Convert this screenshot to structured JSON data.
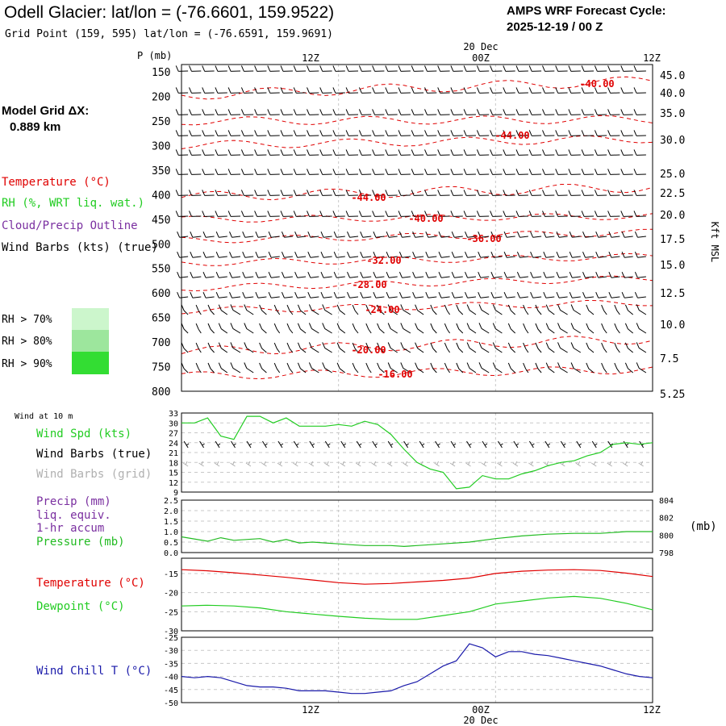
{
  "header": {
    "title": "Odell Glacier:  lat/lon = (-76.6601, 159.9522)",
    "subtitle": "Grid Point (159, 595) lat/lon = (-76.6591, 159.9691)",
    "cycle_label": "AMPS WRF Forecast Cycle:",
    "cycle_value": "2025-12-19 / 00  Z",
    "grid_label": "Model Grid ΔX:",
    "grid_value": "0.889 km"
  },
  "time_axis": {
    "ticks": [
      "12Z",
      "00Z",
      "12Z"
    ],
    "date": "20 Dec"
  },
  "colors": {
    "temperature": "#e00000",
    "rh": "#22cc22",
    "cloud": "#7a2fa0",
    "wind": "#000000",
    "wind_grid": "#b0b0b0",
    "pressure": "#22bb22",
    "windchill": "#1a1aaa",
    "rh70": "#ccf6cc",
    "rh80": "#9de69d",
    "rh90": "#33dd33"
  },
  "profile": {
    "p_label": "P (mb)",
    "right_label": "Kft MSL",
    "legend": [
      "Temperature (°C)",
      "RH (%, WRT liq. wat.)",
      "Cloud/Precip Outline",
      "Wind Barbs (kts) (true)"
    ],
    "rh_legend": [
      "RH > 70%",
      "RH > 80%",
      "RH > 90%"
    ],
    "pressure_levels": [
      "150",
      "200",
      "250",
      "300",
      "350",
      "400",
      "450",
      "500",
      "550",
      "600",
      "650",
      "700",
      "750",
      "800"
    ],
    "kft_levels": [
      "45.0",
      "40.0",
      "35.0",
      "30.0",
      "25.0",
      "22.5",
      "20.0",
      "17.5",
      "15.0",
      "12.5",
      "10.0",
      "7.5",
      "5.25"
    ],
    "isotherm_labels": [
      "-40.00",
      "-44.00",
      "-44.00",
      "-40.00",
      "-36.00",
      "-32.00",
      "-28.00",
      "-24.00",
      "-20.00",
      "-16.00"
    ]
  },
  "panel_wind": {
    "title": "Wind at 10 m",
    "legend": [
      "Wind Spd (kts)",
      "Wind Barbs (true)",
      "Wind Barbs (grid)"
    ],
    "y_ticks": [
      "33",
      "30",
      "27",
      "24",
      "21",
      "18",
      "15",
      "12",
      "9"
    ]
  },
  "panel_precip": {
    "legend": [
      "Precip (mm)",
      "liq. equiv.",
      "1-hr accum",
      "Pressure (mb)"
    ],
    "y_ticks_left": [
      "2.5",
      "2.0",
      "1.5",
      "1.0",
      "0.5",
      "0.0"
    ],
    "y_ticks_right": [
      "804",
      "802",
      "800",
      "798"
    ],
    "right_unit": "(mb)"
  },
  "panel_temp": {
    "legend": [
      "Temperature (°C)",
      "Dewpoint (°C)"
    ],
    "y_ticks": [
      "-15",
      "-20",
      "-25",
      "-30"
    ]
  },
  "panel_chill": {
    "legend": [
      "Wind Chill T (°C)"
    ],
    "y_ticks": [
      "-25",
      "-30",
      "-35",
      "-40",
      "-45",
      "-50"
    ]
  },
  "chart_data": [
    {
      "type": "line",
      "title": "Wind at 10 m",
      "ylabel": "Wind Spd (kts)",
      "ylim": [
        9,
        33
      ],
      "x_hours": [
        0,
        1,
        2,
        3,
        4,
        5,
        6,
        7,
        8,
        9,
        10,
        11,
        12,
        13,
        14,
        15,
        16,
        17,
        18,
        19,
        20,
        21,
        22,
        23,
        24,
        25,
        26,
        27,
        28,
        29,
        30,
        31,
        32,
        33,
        34,
        35,
        36
      ],
      "series": [
        {
          "name": "Wind Spd (kts)",
          "values": [
            30,
            30,
            31.5,
            26,
            25,
            32,
            32,
            30,
            31.5,
            29,
            29,
            29,
            29.5,
            29,
            30.5,
            29.5,
            26.5,
            22,
            18,
            16,
            15,
            10,
            10.5,
            14,
            13,
            13,
            14.5,
            15.5,
            17,
            18,
            18.5,
            20,
            21,
            23.5,
            24,
            23.5,
            24
          ]
        }
      ]
    },
    {
      "type": "line",
      "title": "Pressure",
      "ylabel": "Pressure (mb)",
      "ylim": [
        798,
        804
      ],
      "x_hours": [
        0,
        2,
        3,
        4,
        6,
        7,
        8,
        9,
        10,
        11,
        12,
        13,
        14,
        16,
        17,
        18,
        20,
        22,
        24,
        26,
        28,
        30,
        32,
        34,
        36
      ],
      "series": [
        {
          "name": "Pressure (mb)",
          "values": [
            799.8,
            799.3,
            799.7,
            799.4,
            799.6,
            799.2,
            799.5,
            799.1,
            799.2,
            799.1,
            799.0,
            798.9,
            798.8,
            798.8,
            798.7,
            798.8,
            799.0,
            799.2,
            799.6,
            799.9,
            800.1,
            800.2,
            800.2,
            800.4,
            800.4
          ]
        }
      ],
      "precip_values": [
        0,
        0,
        0,
        0,
        0,
        0,
        0,
        0,
        0,
        0,
        0,
        0,
        0,
        0,
        0,
        0,
        0,
        0,
        0,
        0,
        0,
        0,
        0,
        0,
        0
      ]
    },
    {
      "type": "line",
      "title": "Temperature / Dewpoint",
      "ylabel": "°C",
      "ylim": [
        -30,
        -11
      ],
      "x_hours": [
        0,
        2,
        4,
        6,
        8,
        10,
        12,
        14,
        16,
        18,
        20,
        22,
        24,
        26,
        28,
        30,
        32,
        34,
        36
      ],
      "series": [
        {
          "name": "Temperature (°C)",
          "values": [
            -14,
            -14.3,
            -14.8,
            -15.4,
            -16,
            -16.7,
            -17.4,
            -17.8,
            -17.6,
            -17.2,
            -16.8,
            -16.2,
            -15,
            -14.4,
            -14.1,
            -14,
            -14.2,
            -14.9,
            -15.8
          ]
        },
        {
          "name": "Dewpoint (°C)",
          "values": [
            -23.5,
            -23.3,
            -23.5,
            -24,
            -25,
            -25.6,
            -26.2,
            -26.7,
            -27,
            -27,
            -26,
            -25,
            -23,
            -22.2,
            -21.4,
            -21,
            -21.5,
            -22.8,
            -24.5
          ]
        }
      ]
    },
    {
      "type": "line",
      "title": "Wind Chill",
      "ylabel": "Wind Chill T (°C)",
      "ylim": [
        -50,
        -25
      ],
      "x_hours": [
        0,
        1,
        2,
        3,
        4,
        5,
        6,
        7,
        8,
        9,
        10,
        11,
        12,
        13,
        14,
        15,
        16,
        17,
        18,
        19,
        20,
        21,
        22,
        23,
        24,
        25,
        26,
        27,
        28,
        29,
        30,
        31,
        32,
        33,
        34,
        35,
        36
      ],
      "series": [
        {
          "name": "Wind Chill T (°C)",
          "values": [
            -40,
            -40.5,
            -40,
            -40.5,
            -42,
            -43.5,
            -44,
            -44,
            -44.5,
            -45.5,
            -45.5,
            -45.5,
            -46,
            -46.5,
            -46.5,
            -46,
            -45.5,
            -43.5,
            -42,
            -39,
            -36,
            -34,
            -27.5,
            -29,
            -32.5,
            -30.5,
            -30.5,
            -31.5,
            -32,
            -33,
            -34,
            -35,
            -36,
            -37.5,
            -39,
            -40,
            -40.5
          ]
        }
      ]
    }
  ]
}
